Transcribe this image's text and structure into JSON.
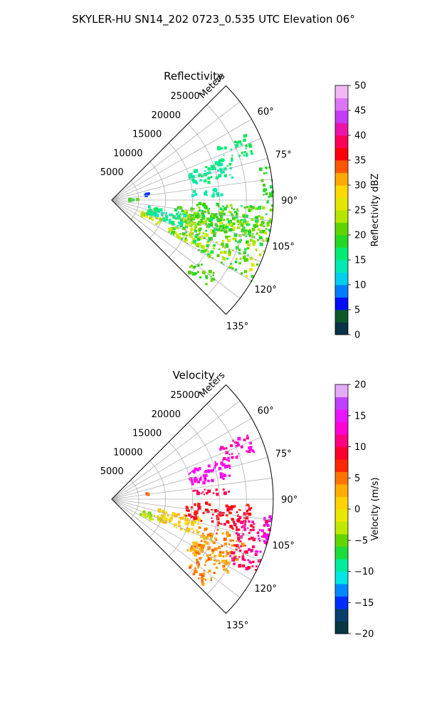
{
  "suptitle": "SKYLER-HU  SN14_202  0723_0.535 UTC Elevation 06°",
  "chart_data": [
    {
      "type": "heatmap",
      "title": "Reflectivity",
      "r_label": "Meters",
      "r_ticks": [
        5000,
        10000,
        15000,
        20000,
        25000
      ],
      "r_tick_labels": [
        "5000",
        "10000",
        "15000",
        "20000",
        "25000"
      ],
      "rlim": [
        0,
        30000
      ],
      "theta_range_deg": [
        45,
        135
      ],
      "theta_ticks": [
        60,
        75,
        90,
        105,
        120,
        135
      ],
      "theta_tick_labels": [
        "60°",
        "75°",
        "90°",
        "105°",
        "120°",
        "135°"
      ],
      "grid": true,
      "colorbar": {
        "label": "Reflectivity dBZ",
        "range": [
          0,
          50
        ],
        "ticks": [
          0,
          5,
          10,
          15,
          20,
          25,
          30,
          35,
          40,
          45,
          50
        ],
        "tick_labels": [
          "0",
          "5",
          "10",
          "15",
          "20",
          "25",
          "30",
          "35",
          "40",
          "45",
          "50"
        ],
        "stops": [
          [
            0,
            "#081d58"
          ],
          [
            4,
            "#0b5e24"
          ],
          [
            6,
            "#0000ff"
          ],
          [
            9,
            "#0088ff"
          ],
          [
            12,
            "#00e6e6"
          ],
          [
            16,
            "#00ee77"
          ],
          [
            20,
            "#33cc00"
          ],
          [
            24,
            "#bfe800"
          ],
          [
            28,
            "#ffe600"
          ],
          [
            32,
            "#ff9a00"
          ],
          [
            36,
            "#ff0000"
          ],
          [
            40,
            "#ff0080"
          ],
          [
            44,
            "#c040ff"
          ],
          [
            48,
            "#f0a0f0"
          ],
          [
            50,
            "#f8e0f8"
          ]
        ]
      },
      "regions": [
        {
          "th": [
            110,
            118
          ],
          "r": [
            6000,
            10000
          ],
          "v": [
            22,
            28
          ]
        },
        {
          "th": [
            96,
            120
          ],
          "r": [
            12000,
            30000
          ],
          "v": [
            17,
            26
          ]
        },
        {
          "th": [
            92,
            106
          ],
          "r": [
            14000,
            30000
          ],
          "v": [
            16,
            24
          ]
        },
        {
          "th": [
            100,
            112
          ],
          "r": [
            7000,
            14000
          ],
          "v": [
            13,
            17
          ]
        },
        {
          "th": [
            70,
            80
          ],
          "r": [
            15000,
            23000
          ],
          "v": [
            13,
            17
          ]
        },
        {
          "th": [
            64,
            72
          ],
          "r": [
            22000,
            28000
          ],
          "v": [
            15,
            18
          ]
        },
        {
          "th": [
            84,
            88
          ],
          "r": [
            15000,
            21000
          ],
          "v": [
            13,
            16
          ]
        },
        {
          "th": [
            78,
            92
          ],
          "r": [
            28000,
            30000
          ],
          "v": [
            17,
            21
          ]
        },
        {
          "th": [
            125,
            133
          ],
          "r": [
            19000,
            24000
          ],
          "v": [
            18,
            22
          ]
        },
        {
          "th": [
            80,
            84
          ],
          "r": [
            6000,
            7000
          ],
          "v": [
            6,
            10
          ]
        },
        {
          "th": [
            88,
            92
          ],
          "r": [
            3000,
            5000
          ],
          "v": [
            18,
            21
          ]
        }
      ]
    },
    {
      "type": "heatmap",
      "title": "Velocity",
      "r_label": "Meters",
      "r_ticks": [
        5000,
        10000,
        15000,
        20000,
        25000
      ],
      "r_tick_labels": [
        "5000",
        "10000",
        "15000",
        "20000",
        "25000"
      ],
      "rlim": [
        0,
        30000
      ],
      "theta_range_deg": [
        45,
        135
      ],
      "theta_ticks": [
        60,
        75,
        90,
        105,
        120,
        135
      ],
      "theta_tick_labels": [
        "60°",
        "75°",
        "90°",
        "105°",
        "120°",
        "135°"
      ],
      "grid": true,
      "colorbar": {
        "label": "Velocity (m/s)",
        "range": [
          -20,
          20
        ],
        "ticks": [
          -20,
          -15,
          -10,
          -5,
          0,
          5,
          10,
          15,
          20
        ],
        "tick_labels": [
          "−20",
          "−15",
          "−10",
          "−5",
          "0",
          "5",
          "10",
          "15",
          "20"
        ],
        "stops": [
          [
            -20,
            "#081d58"
          ],
          [
            -17.5,
            "#0b5e24"
          ],
          [
            -16,
            "#0000ff"
          ],
          [
            -13,
            "#0088ff"
          ],
          [
            -11,
            "#00e6e6"
          ],
          [
            -8,
            "#00ee77"
          ],
          [
            -6,
            "#33cc00"
          ],
          [
            -3,
            "#bfe800"
          ],
          [
            0,
            "#ffe600"
          ],
          [
            4,
            "#ff9a00"
          ],
          [
            8,
            "#ff0000"
          ],
          [
            11,
            "#ff0080"
          ],
          [
            14,
            "#ff00ff"
          ],
          [
            17,
            "#c040ff"
          ],
          [
            20,
            "#f8e0f8"
          ]
        ]
      },
      "regions": [
        {
          "th": [
            110,
            118
          ],
          "r": [
            6000,
            10000
          ],
          "v": [
            -5,
            -2
          ]
        },
        {
          "th": [
            102,
            114
          ],
          "r": [
            9000,
            17000
          ],
          "v": [
            0,
            3
          ]
        },
        {
          "th": [
            106,
            124
          ],
          "r": [
            17000,
            26000
          ],
          "v": [
            2,
            6
          ]
        },
        {
          "th": [
            92,
            104
          ],
          "r": [
            14000,
            26000
          ],
          "v": [
            7,
            10
          ]
        },
        {
          "th": [
            98,
            118
          ],
          "r": [
            24000,
            30000
          ],
          "v": [
            9,
            12
          ]
        },
        {
          "th": [
            95,
            110
          ],
          "r": [
            28000,
            30000
          ],
          "v": [
            13,
            15
          ]
        },
        {
          "th": [
            70,
            80
          ],
          "r": [
            15000,
            23000
          ],
          "v": [
            13,
            15
          ]
        },
        {
          "th": [
            64,
            72
          ],
          "r": [
            22000,
            28000
          ],
          "v": [
            11,
            14
          ]
        },
        {
          "th": [
            84,
            88
          ],
          "r": [
            15000,
            22000
          ],
          "v": [
            9,
            11
          ]
        },
        {
          "th": [
            125,
            133
          ],
          "r": [
            19000,
            24000
          ],
          "v": [
            3,
            6
          ]
        },
        {
          "th": [
            80,
            84
          ],
          "r": [
            6000,
            7000
          ],
          "v": [
            4,
            8
          ]
        }
      ]
    }
  ]
}
